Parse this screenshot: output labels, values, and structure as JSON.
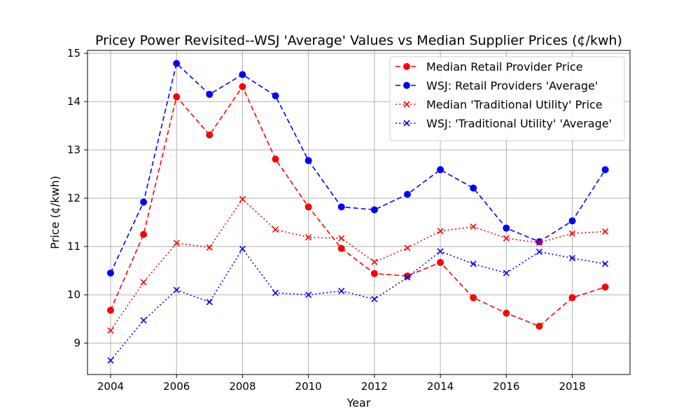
{
  "chart_data": {
    "type": "line",
    "title": "Pricey Power Revisited--WSJ 'Average' Values vs Median Supplier Prices (¢/kwh)",
    "xlabel": "Year",
    "ylabel": "Price (¢/kwh)",
    "xlim": [
      2003.3,
      2019.75
    ],
    "ylim": [
      8.35,
      15.06
    ],
    "x": [
      2004,
      2005,
      2006,
      2007,
      2008,
      2009,
      2010,
      2011,
      2012,
      2013,
      2014,
      2015,
      2016,
      2017,
      2018,
      2019
    ],
    "xticks": [
      2004,
      2006,
      2008,
      2010,
      2012,
      2014,
      2016,
      2018
    ],
    "yticks": [
      9,
      10,
      11,
      12,
      13,
      14,
      15
    ],
    "grid": true,
    "legend_position": "upper-right",
    "series": [
      {
        "name": "Median Retail Provider Price",
        "color": "#ff0000",
        "line_style": "dashed",
        "marker": "circle",
        "values": [
          9.68,
          11.25,
          14.1,
          13.31,
          14.31,
          12.81,
          11.82,
          10.96,
          10.44,
          10.39,
          10.67,
          9.94,
          9.62,
          9.35,
          9.94,
          10.16
        ]
      },
      {
        "name": "WSJ: Retail Providers 'Average'",
        "color": "#0000ff",
        "line_style": "dashed",
        "marker": "circle",
        "values": [
          10.45,
          11.92,
          14.79,
          14.15,
          14.56,
          14.12,
          12.78,
          11.82,
          11.76,
          12.08,
          12.59,
          12.21,
          11.38,
          11.1,
          11.53,
          12.59
        ]
      },
      {
        "name": "Median 'Traditional Utility' Price",
        "color": "#ff0000",
        "line_style": "dotted",
        "marker": "x",
        "values": [
          9.26,
          10.26,
          11.07,
          10.98,
          11.98,
          11.35,
          11.19,
          11.17,
          10.68,
          10.97,
          11.32,
          11.41,
          11.17,
          11.08,
          11.27,
          11.31
        ]
      },
      {
        "name": "WSJ: 'Traditional Utility' 'Average'",
        "color": "#0000ff",
        "line_style": "dotted",
        "marker": "x",
        "values": [
          8.64,
          9.47,
          10.1,
          9.85,
          10.95,
          10.04,
          10.0,
          10.08,
          9.91,
          10.36,
          10.9,
          10.64,
          10.45,
          10.89,
          10.76,
          10.64
        ]
      }
    ]
  }
}
